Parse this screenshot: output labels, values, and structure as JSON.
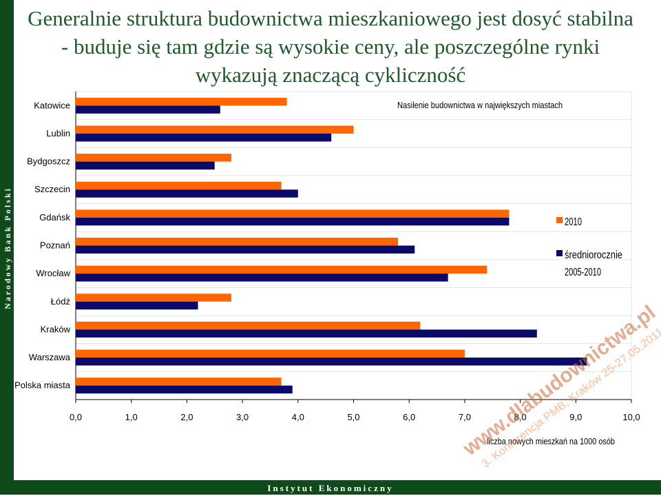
{
  "slide": {
    "title": "Generalnie struktura budownictwa mieszkaniowego jest dosyć stabilna - buduje się tam gdzie są wysokie ceny, ale poszczególne rynki wykazują znaczącą cykliczność",
    "left_label": "Narodowy Bank Polski",
    "bottom_label": "Instytut Ekonomiczny",
    "watermark_line1": "www.dlabudownictwa.pl",
    "watermark_line2": "3. Konferencja PMB, Kraków 25-27.05.2011"
  },
  "colors": {
    "brand_green": "#0f4a1b",
    "title_green": "#1e5a2a",
    "series_2010": "#ff6600",
    "series_avg": "#0a0a6b"
  },
  "chart_data": {
    "type": "bar",
    "orientation": "horizontal",
    "title": "Nasilenie budownictwa w największych miastach",
    "xlabel": "liczba nowych mieszkań na 1000 osób",
    "ylabel": "",
    "xlim": [
      0,
      10
    ],
    "x_ticks": [
      "0,0",
      "1,0",
      "2,0",
      "3,0",
      "4,0",
      "5,0",
      "6,0",
      "7,0",
      "8,0",
      "9,0",
      "10,0"
    ],
    "categories": [
      "Katowice",
      "Lublin",
      "Bydgoszcz",
      "Szczecin",
      "Gdańsk",
      "Poznań",
      "Wrocław",
      "Łódź",
      "Kraków",
      "Warszawa",
      "Polska miasta"
    ],
    "series": [
      {
        "name": "2010",
        "values": [
          3.8,
          5.0,
          2.8,
          3.7,
          7.8,
          5.8,
          7.4,
          2.8,
          6.2,
          7.0,
          3.7
        ]
      },
      {
        "name": "średniorocznie 2005-2010",
        "values": [
          2.6,
          4.6,
          2.5,
          4.0,
          7.8,
          6.1,
          6.7,
          2.2,
          8.3,
          9.2,
          3.9
        ]
      }
    ],
    "legend_position": "right",
    "grid": true
  }
}
